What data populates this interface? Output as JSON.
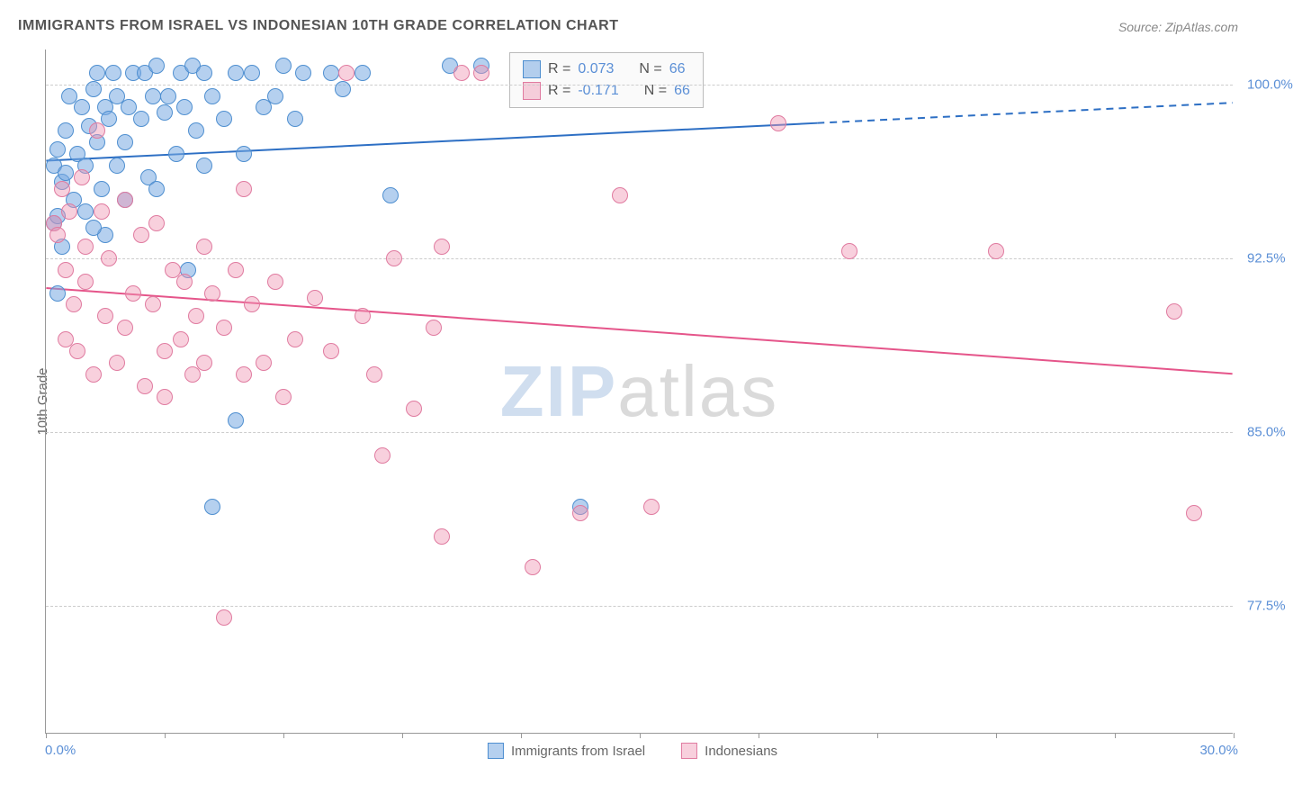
{
  "title": "IMMIGRANTS FROM ISRAEL VS INDONESIAN 10TH GRADE CORRELATION CHART",
  "source_label": "Source: ZipAtlas.com",
  "ylabel": "10th Grade",
  "watermark": {
    "part1": "ZIP",
    "part2": "atlas"
  },
  "chart": {
    "type": "scatter",
    "background_color": "#ffffff",
    "grid_color": "#cccccc",
    "axis_color": "#999999",
    "tick_label_color": "#5b8fd6",
    "xlim": [
      0.0,
      30.0
    ],
    "ylim": [
      72.0,
      101.5
    ],
    "xtick_positions": [
      0,
      3,
      6,
      9,
      12,
      15,
      18,
      21,
      24,
      27,
      30
    ],
    "xtick_labels": {
      "min": "0.0%",
      "max": "30.0%"
    },
    "ytick_positions": [
      77.5,
      85.0,
      92.5,
      100.0
    ],
    "ytick_labels": [
      "77.5%",
      "85.0%",
      "92.5%",
      "100.0%"
    ],
    "title_fontsize": 16,
    "label_fontsize": 15,
    "tick_fontsize": 15,
    "point_radius": 9,
    "point_border_width": 1.2,
    "series": [
      {
        "name": "Immigrants from Israel",
        "color_fill": "rgba(120,170,225,0.55)",
        "color_stroke": "#4f8fd0",
        "R": "0.073",
        "N": "66",
        "trend": {
          "y_at_xmin": 96.7,
          "y_at_xmax": 99.2,
          "solid_until_x": 19.5,
          "color": "#2d6fc4",
          "width": 2
        },
        "points": [
          [
            0.2,
            96.5
          ],
          [
            0.3,
            97.2
          ],
          [
            0.4,
            95.8
          ],
          [
            0.5,
            98.0
          ],
          [
            0.5,
            96.2
          ],
          [
            0.6,
            99.5
          ],
          [
            0.7,
            95.0
          ],
          [
            0.8,
            97.0
          ],
          [
            0.9,
            99.0
          ],
          [
            1.0,
            96.5
          ],
          [
            1.0,
            94.5
          ],
          [
            1.1,
            98.2
          ],
          [
            1.2,
            99.8
          ],
          [
            1.3,
            100.5
          ],
          [
            1.3,
            97.5
          ],
          [
            1.4,
            95.5
          ],
          [
            1.5,
            99.0
          ],
          [
            1.5,
            93.5
          ],
          [
            1.6,
            98.5
          ],
          [
            1.7,
            100.5
          ],
          [
            1.8,
            96.5
          ],
          [
            1.8,
            99.5
          ],
          [
            2.0,
            97.5
          ],
          [
            2.0,
            95.0
          ],
          [
            2.1,
            99.0
          ],
          [
            2.2,
            100.5
          ],
          [
            2.4,
            98.5
          ],
          [
            2.5,
            100.5
          ],
          [
            2.6,
            96.0
          ],
          [
            2.7,
            99.5
          ],
          [
            2.8,
            95.5
          ],
          [
            2.8,
            100.8
          ],
          [
            3.0,
            98.8
          ],
          [
            3.1,
            99.5
          ],
          [
            3.3,
            97.0
          ],
          [
            3.4,
            100.5
          ],
          [
            3.5,
            99.0
          ],
          [
            3.6,
            92.0
          ],
          [
            3.7,
            100.8
          ],
          [
            3.8,
            98.0
          ],
          [
            4.0,
            96.5
          ],
          [
            4.0,
            100.5
          ],
          [
            4.2,
            99.5
          ],
          [
            4.5,
            98.5
          ],
          [
            4.8,
            100.5
          ],
          [
            4.8,
            85.5
          ],
          [
            5.0,
            97.0
          ],
          [
            5.2,
            100.5
          ],
          [
            5.5,
            99.0
          ],
          [
            5.8,
            99.5
          ],
          [
            6.0,
            100.8
          ],
          [
            6.3,
            98.5
          ],
          [
            6.5,
            100.5
          ],
          [
            0.3,
            91.0
          ],
          [
            0.4,
            93.0
          ],
          [
            0.2,
            94.0
          ],
          [
            7.2,
            100.5
          ],
          [
            7.5,
            99.8
          ],
          [
            8.0,
            100.5
          ],
          [
            8.7,
            95.2
          ],
          [
            10.2,
            100.8
          ],
          [
            11.0,
            100.8
          ],
          [
            13.5,
            81.8
          ],
          [
            4.2,
            81.8
          ],
          [
            1.2,
            93.8
          ],
          [
            0.3,
            94.3
          ]
        ]
      },
      {
        "name": "Indonesians",
        "color_fill": "rgba(240,150,180,0.45)",
        "color_stroke": "#e07ba0",
        "R": "-0.171",
        "N": "66",
        "trend": {
          "y_at_xmin": 91.2,
          "y_at_xmax": 87.5,
          "solid_until_x": 30.0,
          "color": "#e5558a",
          "width": 2
        },
        "points": [
          [
            0.2,
            94.0
          ],
          [
            0.3,
            93.5
          ],
          [
            0.4,
            95.5
          ],
          [
            0.5,
            89.0
          ],
          [
            0.5,
            92.0
          ],
          [
            0.6,
            94.5
          ],
          [
            0.7,
            90.5
          ],
          [
            0.8,
            88.5
          ],
          [
            0.9,
            96.0
          ],
          [
            1.0,
            91.5
          ],
          [
            1.0,
            93.0
          ],
          [
            1.2,
            87.5
          ],
          [
            1.3,
            98.0
          ],
          [
            1.4,
            94.5
          ],
          [
            1.5,
            90.0
          ],
          [
            1.6,
            92.5
          ],
          [
            1.8,
            88.0
          ],
          [
            2.0,
            95.0
          ],
          [
            2.0,
            89.5
          ],
          [
            2.2,
            91.0
          ],
          [
            2.4,
            93.5
          ],
          [
            2.5,
            87.0
          ],
          [
            2.7,
            90.5
          ],
          [
            2.8,
            94.0
          ],
          [
            3.0,
            88.5
          ],
          [
            3.0,
            86.5
          ],
          [
            3.2,
            92.0
          ],
          [
            3.4,
            89.0
          ],
          [
            3.5,
            91.5
          ],
          [
            3.7,
            87.5
          ],
          [
            3.8,
            90.0
          ],
          [
            4.0,
            93.0
          ],
          [
            4.0,
            88.0
          ],
          [
            4.2,
            91.0
          ],
          [
            4.5,
            89.5
          ],
          [
            4.5,
            77.0
          ],
          [
            4.8,
            92.0
          ],
          [
            5.0,
            87.5
          ],
          [
            5.2,
            90.5
          ],
          [
            5.5,
            88.0
          ],
          [
            5.8,
            91.5
          ],
          [
            6.0,
            86.5
          ],
          [
            6.3,
            89.0
          ],
          [
            6.8,
            90.8
          ],
          [
            7.2,
            88.5
          ],
          [
            7.6,
            100.5
          ],
          [
            8.0,
            90.0
          ],
          [
            8.3,
            87.5
          ],
          [
            8.5,
            84.0
          ],
          [
            8.8,
            92.5
          ],
          [
            9.3,
            86.0
          ],
          [
            9.8,
            89.5
          ],
          [
            10.0,
            93.0
          ],
          [
            10.0,
            80.5
          ],
          [
            10.5,
            100.5
          ],
          [
            11.0,
            100.5
          ],
          [
            12.3,
            79.2
          ],
          [
            13.5,
            81.5
          ],
          [
            14.5,
            95.2
          ],
          [
            15.3,
            81.8
          ],
          [
            18.5,
            98.3
          ],
          [
            20.3,
            92.8
          ],
          [
            24.0,
            92.8
          ],
          [
            28.5,
            90.2
          ],
          [
            29.0,
            81.5
          ],
          [
            5.0,
            95.5
          ]
        ]
      }
    ],
    "legend_bottom": [
      {
        "label": "Immigrants from Israel",
        "fill": "rgba(120,170,225,0.55)",
        "stroke": "#4f8fd0"
      },
      {
        "label": "Indonesians",
        "fill": "rgba(240,150,180,0.45)",
        "stroke": "#e07ba0"
      }
    ],
    "stats_box": {
      "bg": "#fafafa",
      "border": "#bbbbbb",
      "rows": [
        {
          "swatch_fill": "rgba(120,170,225,0.55)",
          "swatch_stroke": "#4f8fd0",
          "r_label": "R =",
          "r_value": "0.073",
          "n_label": "N =",
          "n_value": "66"
        },
        {
          "swatch_fill": "rgba(240,150,180,0.45)",
          "swatch_stroke": "#e07ba0",
          "r_label": "R =",
          "r_value": "-0.171",
          "n_label": "N =",
          "n_value": "66"
        }
      ]
    }
  }
}
